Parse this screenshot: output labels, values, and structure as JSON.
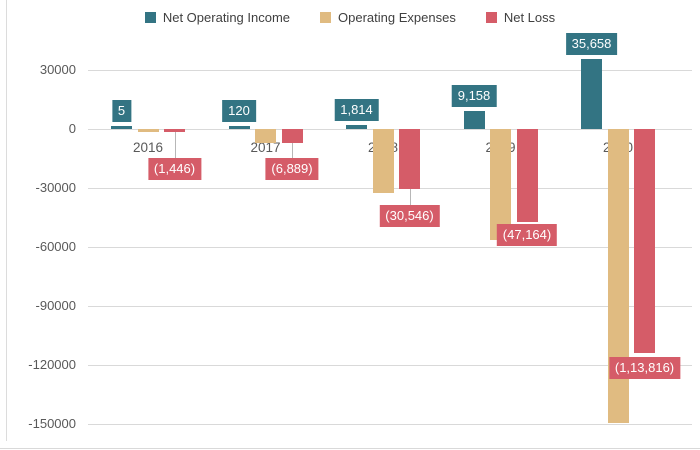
{
  "chart_data": {
    "type": "bar",
    "title": "",
    "xlabel": "",
    "ylabel": "",
    "categories": [
      "2016",
      "2017",
      "2018",
      "2019",
      "2020"
    ],
    "series": [
      {
        "name": "Net Operating Income",
        "color": "#337483",
        "values": [
          5,
          120,
          1814,
          9158,
          35658
        ],
        "data_labels": [
          "5",
          "120",
          "1,814",
          "9,158",
          "35,658"
        ]
      },
      {
        "name": "Operating Expenses",
        "color": "#e0bb81",
        "values": [
          -1451,
          -7009,
          -32360,
          -56322,
          -149474
        ],
        "data_labels": null
      },
      {
        "name": "Net Loss",
        "color": "#d55c68",
        "values": [
          -1446,
          -6889,
          -30546,
          -47164,
          -113816
        ],
        "data_labels": [
          "(1,446)",
          "(6,889)",
          "(30,546)",
          "(47,164)",
          "(1,13,816)"
        ]
      }
    ],
    "y_ticks": [
      30000,
      0,
      -30000,
      -60000,
      -90000,
      -120000,
      -150000
    ],
    "y_tick_labels": [
      "30000",
      "0",
      "-30000",
      "-60000",
      "-90000",
      "-120000",
      "-150000"
    ],
    "ylim": [
      -155000,
      42000
    ],
    "grid": true,
    "legend_position": "top"
  }
}
